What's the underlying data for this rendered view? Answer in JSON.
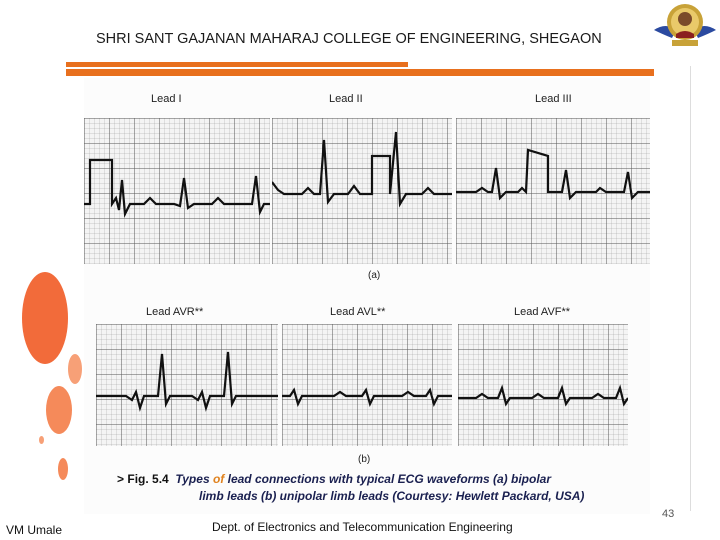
{
  "header": {
    "title": "SHRI SANT GAJANAN MAHARAJ COLLEGE OF ENGINEERING, SHEGAON"
  },
  "figure": {
    "group_a": {
      "leads": [
        "Lead I",
        "Lead II",
        "Lead III"
      ],
      "label": "(a)"
    },
    "group_b": {
      "leads": [
        "Lead AVR**",
        "Lead AVL**",
        "Lead AVF**"
      ],
      "label": "(b)"
    },
    "caption": {
      "arrow": ">",
      "fig_no": "Fig. 5.4",
      "line1_a": "Types ",
      "line1_accent": "of",
      "line1_b": " lead connections with typical ECG waveforms (a) bipolar",
      "line2": "limb leads (b) unipolar limb leads (Courtesy: Hewlett Packard, USA)"
    }
  },
  "footer": {
    "author": "VM Umale",
    "department": "Dept. of Electronics and Telecommunication Engineering",
    "page_number": "43"
  },
  "colors": {
    "accent_orange": "#e8701e",
    "decor_orange": "#f05a28",
    "caption_navy": "#1a2050"
  }
}
